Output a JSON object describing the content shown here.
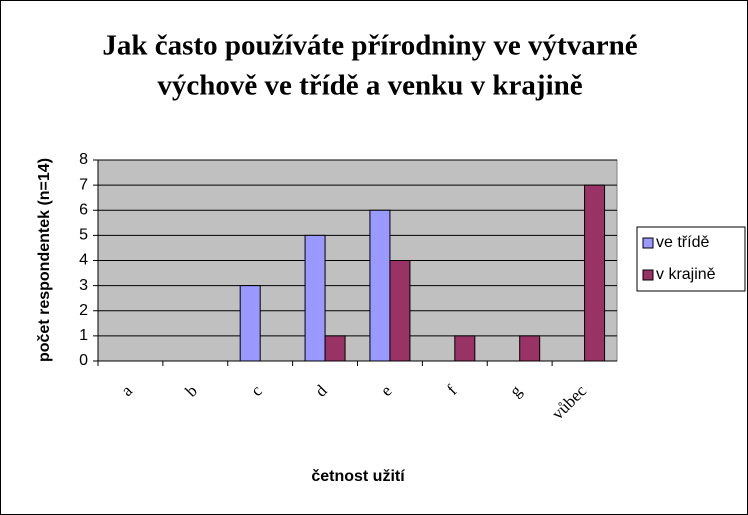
{
  "chart_data": {
    "type": "bar",
    "title": [
      "Jak často používáte přírodniny ve výtvarné",
      "výchově ve třídě a venku v krajině"
    ],
    "x_label": "četnost užití",
    "y_label": "počet respondentek (n=14)",
    "categories": [
      "a",
      "b",
      "c",
      "d",
      "e",
      "f",
      "g",
      "vůbec"
    ],
    "series": [
      {
        "name": "ve třídě",
        "color": "#9999ff",
        "values": [
          0,
          0,
          3,
          5,
          6,
          0,
          0,
          0
        ]
      },
      {
        "name": "v krajině",
        "color": "#993366",
        "values": [
          0,
          0,
          0,
          1,
          4,
          1,
          1,
          7
        ]
      }
    ],
    "ylim": [
      0,
      8
    ],
    "yticks": [
      0,
      1,
      2,
      3,
      4,
      5,
      6,
      7,
      8
    ],
    "grid": true,
    "legend": "right"
  }
}
